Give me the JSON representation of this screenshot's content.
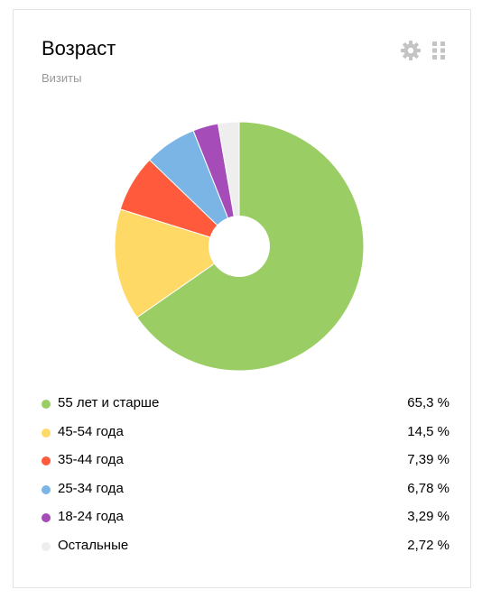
{
  "widget": {
    "title": "Возраст",
    "subtitle": "Визиты",
    "icons": {
      "settings": "gear-icon",
      "drag": "drag-handle-icon"
    }
  },
  "chart_data": {
    "type": "pie",
    "donut": true,
    "title": "Возраст",
    "subtitle": "Визиты",
    "legend_position": "bottom",
    "slices": [
      {
        "label": "55 лет и старше",
        "value": 65.3,
        "display": "65,3 %",
        "color": "#9acd63"
      },
      {
        "label": "45-54 года",
        "value": 14.5,
        "display": "14,5 %",
        "color": "#ffd966"
      },
      {
        "label": "35-44 года",
        "value": 7.39,
        "display": "7,39 %",
        "color": "#ff5a3c"
      },
      {
        "label": "25-34 года",
        "value": 6.78,
        "display": "6,78 %",
        "color": "#7ab5e6"
      },
      {
        "label": "18-24 года",
        "value": 3.29,
        "display": "3,29 %",
        "color": "#a54cb8"
      },
      {
        "label": "Остальные",
        "value": 2.72,
        "display": "2,72 %",
        "color": "#eeeeee"
      }
    ]
  }
}
